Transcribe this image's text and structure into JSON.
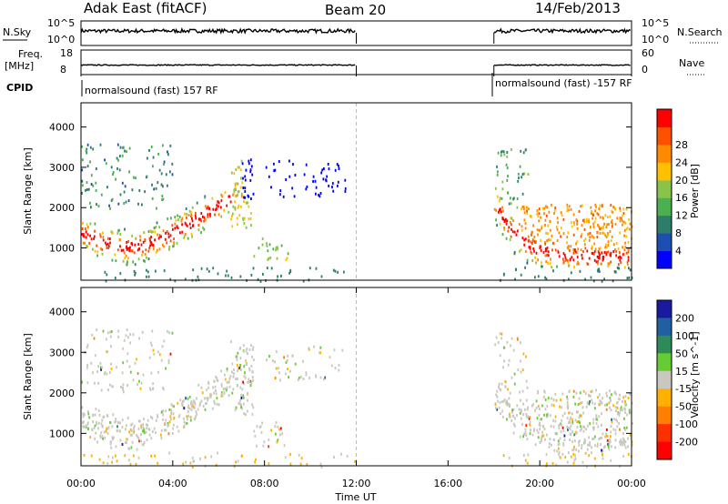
{
  "header": {
    "station": "Adak East (fitACF)",
    "beam": "Beam 20",
    "date": "14/Feb/2013"
  },
  "labels": {
    "nsky": "N.Sky",
    "nsearch": "N.Search",
    "freq_top": "Freq.",
    "freq_unit": "[MHz]",
    "nave": "Nave",
    "cpid": "CPID",
    "cpid_before": "normalsound (fast) 157 RF",
    "cpid_after": "normalsound (fast) -157 RF"
  },
  "chart_data": [
    {
      "type": "line",
      "name": "noise-panel",
      "left_ticks": [
        "10^5",
        "10^0"
      ],
      "right_ticks": [
        "10^5",
        "10^0"
      ],
      "data_gap_ut": [
        "12:00",
        "18:00"
      ]
    },
    {
      "type": "line",
      "name": "freq-panel",
      "left_ticks": [
        "18",
        "8"
      ],
      "right_ticks": [
        "60",
        "0"
      ]
    },
    {
      "type": "heatmap",
      "name": "power-panel",
      "ylabel": "Slant Range [km]",
      "ylim": [
        200,
        4600
      ],
      "yticks": [
        "1000",
        "2000",
        "3000",
        "4000"
      ],
      "xlim": [
        "00:00",
        "24:00"
      ],
      "colorbar": {
        "label": "Power [dB]",
        "ticks": [
          "4",
          "8",
          "12",
          "16",
          "20",
          "24",
          "28"
        ],
        "range": [
          0,
          32
        ],
        "colors": [
          "#0000ff",
          "#1d4fb3",
          "#2e7d6a",
          "#4caf50",
          "#8bc34a",
          "#ffc000",
          "#ff8a00",
          "#ff5000",
          "#ff0000"
        ]
      }
    },
    {
      "type": "heatmap",
      "name": "velocity-panel",
      "ylabel": "Slant Range [km]",
      "ylim": [
        200,
        4600
      ],
      "yticks": [
        "1000",
        "2000",
        "3000",
        "4000"
      ],
      "xlim": [
        "00:00",
        "24:00"
      ],
      "colorbar": {
        "label": "Velocity [m s^-1]",
        "ticks": [
          "200",
          "100",
          "50",
          "15",
          "-15",
          "-50",
          "-100",
          "-200"
        ],
        "colors": [
          "#1a1aa0",
          "#2060a0",
          "#2e8b57",
          "#66cc33",
          "#c8c8c0",
          "#ffb000",
          "#ff8000",
          "#ff3000",
          "#ff0000"
        ]
      }
    }
  ],
  "xaxis": {
    "ticks": [
      "00:00",
      "04:00",
      "08:00",
      "12:00",
      "16:00",
      "20:00",
      "00:00"
    ],
    "label": "Time UT"
  }
}
